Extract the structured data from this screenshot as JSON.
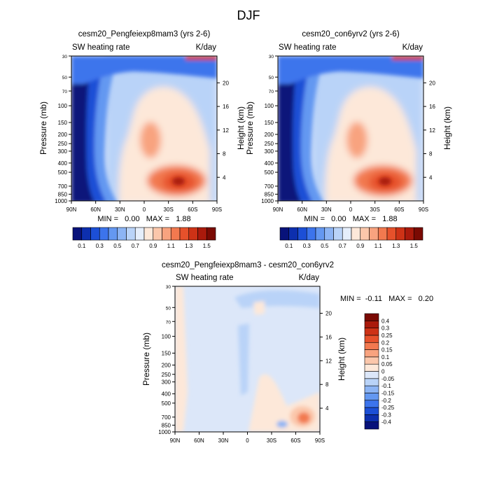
{
  "figure": {
    "title": "DJF"
  },
  "chart_data": [
    {
      "type": "heatmap",
      "title": "cesm20_Pengfeiexp8mam3 (yrs 2-6)",
      "left_label": "SW heating rate",
      "right_label": "K/day",
      "ylabel": "Pressure (mb)",
      "ylabel_right": "Height (km)",
      "x_ticks": [
        "90N",
        "60N",
        "30N",
        "0",
        "30S",
        "60S",
        "90S"
      ],
      "x_range": [
        90,
        -90
      ],
      "y_ticks": [
        "30",
        "50",
        "70",
        "100",
        "150",
        "200",
        "250",
        "300",
        "400",
        "500",
        "700",
        "850",
        "1000"
      ],
      "y_tick_values": [
        30,
        50,
        70,
        100,
        150,
        200,
        250,
        300,
        400,
        500,
        700,
        850,
        1000
      ],
      "y_range": [
        30,
        1000
      ],
      "y_scale": "log",
      "height_ticks": [
        "20",
        "16",
        "12",
        "8",
        "4"
      ],
      "height_values": [
        20,
        16,
        12,
        8,
        4
      ],
      "stats": "MIN =   0.00   MAX =   1.88",
      "colorbar": {
        "orientation": "horizontal",
        "levels": [
          0.1,
          0.2,
          0.3,
          0.4,
          0.5,
          0.6,
          0.7,
          0.8,
          0.9,
          1.0,
          1.1,
          1.2,
          1.3,
          1.4,
          1.5
        ],
        "labels": [
          "0.1",
          "0.3",
          "0.5",
          "0.7",
          "0.9",
          "1.1",
          "1.3",
          "1.5"
        ],
        "colors": [
          "#08127a",
          "#0d2fae",
          "#1c4fd6",
          "#3c74ec",
          "#6498f1",
          "#8cb4f4",
          "#b9d3f8",
          "#e5eefb",
          "#fde8d9",
          "#fbc7ab",
          "#f8a37f",
          "#f2794f",
          "#e6512b",
          "#cd3216",
          "#aa1a0c",
          "#7a0a03"
        ]
      },
      "features": [
        {
          "label": "boundary minimum",
          "value": 0.0
        },
        {
          "label": "lower tropospheric maximum near 45S, 870 mb",
          "value": 1.88
        },
        {
          "label": "mid-tropospheric secondary maximum near 5N, 530 mb",
          "value": 1.0
        },
        {
          "label": "upper-level maximum near 30 mb",
          "value": 1.5
        }
      ]
    },
    {
      "type": "heatmap",
      "title": "cesm20_con6yrv2 (yrs 2-6)",
      "left_label": "SW heating rate",
      "right_label": "K/day",
      "ylabel": "Pressure (mb)",
      "ylabel_right": "Height (km)",
      "x_ticks": [
        "90N",
        "60N",
        "30N",
        "0",
        "30S",
        "60S",
        "90S"
      ],
      "x_range": [
        90,
        -90
      ],
      "y_ticks": [
        "30",
        "50",
        "70",
        "100",
        "150",
        "200",
        "250",
        "300",
        "400",
        "500",
        "700",
        "850",
        "1000"
      ],
      "y_tick_values": [
        30,
        50,
        70,
        100,
        150,
        200,
        250,
        300,
        400,
        500,
        700,
        850,
        1000
      ],
      "y_range": [
        30,
        1000
      ],
      "y_scale": "log",
      "height_ticks": [
        "20",
        "16",
        "12",
        "8",
        "4"
      ],
      "height_values": [
        20,
        16,
        12,
        8,
        4
      ],
      "stats": "MIN =   0.00   MAX =   1.88",
      "colorbar": {
        "orientation": "horizontal",
        "levels": [
          0.1,
          0.2,
          0.3,
          0.4,
          0.5,
          0.6,
          0.7,
          0.8,
          0.9,
          1.0,
          1.1,
          1.2,
          1.3,
          1.4,
          1.5
        ],
        "labels": [
          "0.1",
          "0.3",
          "0.5",
          "0.7",
          "0.9",
          "1.1",
          "1.3",
          "1.5"
        ],
        "colors": [
          "#08127a",
          "#0d2fae",
          "#1c4fd6",
          "#3c74ec",
          "#6498f1",
          "#8cb4f4",
          "#b9d3f8",
          "#e5eefb",
          "#fde8d9",
          "#fbc7ab",
          "#f8a37f",
          "#f2794f",
          "#e6512b",
          "#cd3216",
          "#aa1a0c",
          "#7a0a03"
        ]
      },
      "features": [
        {
          "label": "boundary minimum",
          "value": 0.0
        },
        {
          "label": "lower tropospheric maximum near 45S, 870 mb",
          "value": 1.88
        },
        {
          "label": "mid-tropospheric secondary maximum near 5N, 530 mb",
          "value": 1.0
        },
        {
          "label": "upper-level maximum near 30 mb",
          "value": 1.5
        }
      ]
    },
    {
      "type": "heatmap",
      "title": "cesm20_Pengfeiexp8mam3 - cesm20_con6yrv2",
      "left_label": "SW heating rate",
      "right_label": "K/day",
      "ylabel": "Pressure (mb)",
      "ylabel_right": "Height (km)",
      "x_ticks": [
        "90N",
        "60N",
        "30N",
        "0",
        "30S",
        "60S",
        "90S"
      ],
      "x_range": [
        90,
        -90
      ],
      "y_ticks": [
        "30",
        "50",
        "70",
        "100",
        "150",
        "200",
        "250",
        "300",
        "400",
        "500",
        "700",
        "850",
        "1000"
      ],
      "y_tick_values": [
        30,
        50,
        70,
        100,
        150,
        200,
        250,
        300,
        400,
        500,
        700,
        850,
        1000
      ],
      "y_range": [
        30,
        1000
      ],
      "y_scale": "log",
      "height_ticks": [
        "20",
        "16",
        "12",
        "8",
        "4"
      ],
      "height_values": [
        20,
        16,
        12,
        8,
        4
      ],
      "stats": "MIN =  -0.11   MAX =   0.20",
      "colorbar": {
        "orientation": "vertical",
        "levels": [
          -0.4,
          -0.3,
          -0.25,
          -0.2,
          -0.15,
          -0.1,
          -0.05,
          0,
          0.05,
          0.1,
          0.15,
          0.2,
          0.25,
          0.3,
          0.4
        ],
        "labels": [
          "-0.4",
          "-0.3",
          "-0.25",
          "-0.2",
          "-0.15",
          "-0.1",
          "-0.05",
          "0",
          "0.05",
          "0.1",
          "0.15",
          "0.2",
          "0.25",
          "0.3",
          "0.4"
        ],
        "colors": [
          "#08127a",
          "#0d2fae",
          "#1c4fd6",
          "#3c74ec",
          "#6498f1",
          "#8cb4f4",
          "#b9d3f8",
          "#dce7f9",
          "#fde8d9",
          "#fbc7ab",
          "#f8a37f",
          "#f2794f",
          "#e6512b",
          "#cd3216",
          "#aa1a0c",
          "#7a0a03"
        ]
      },
      "features": [
        {
          "label": "background difference",
          "value": -0.02
        },
        {
          "label": "positive difference near 65S, 900 mb",
          "value": 0.2
        },
        {
          "label": "negative difference in upper troposphere",
          "value": -0.11
        }
      ]
    }
  ]
}
